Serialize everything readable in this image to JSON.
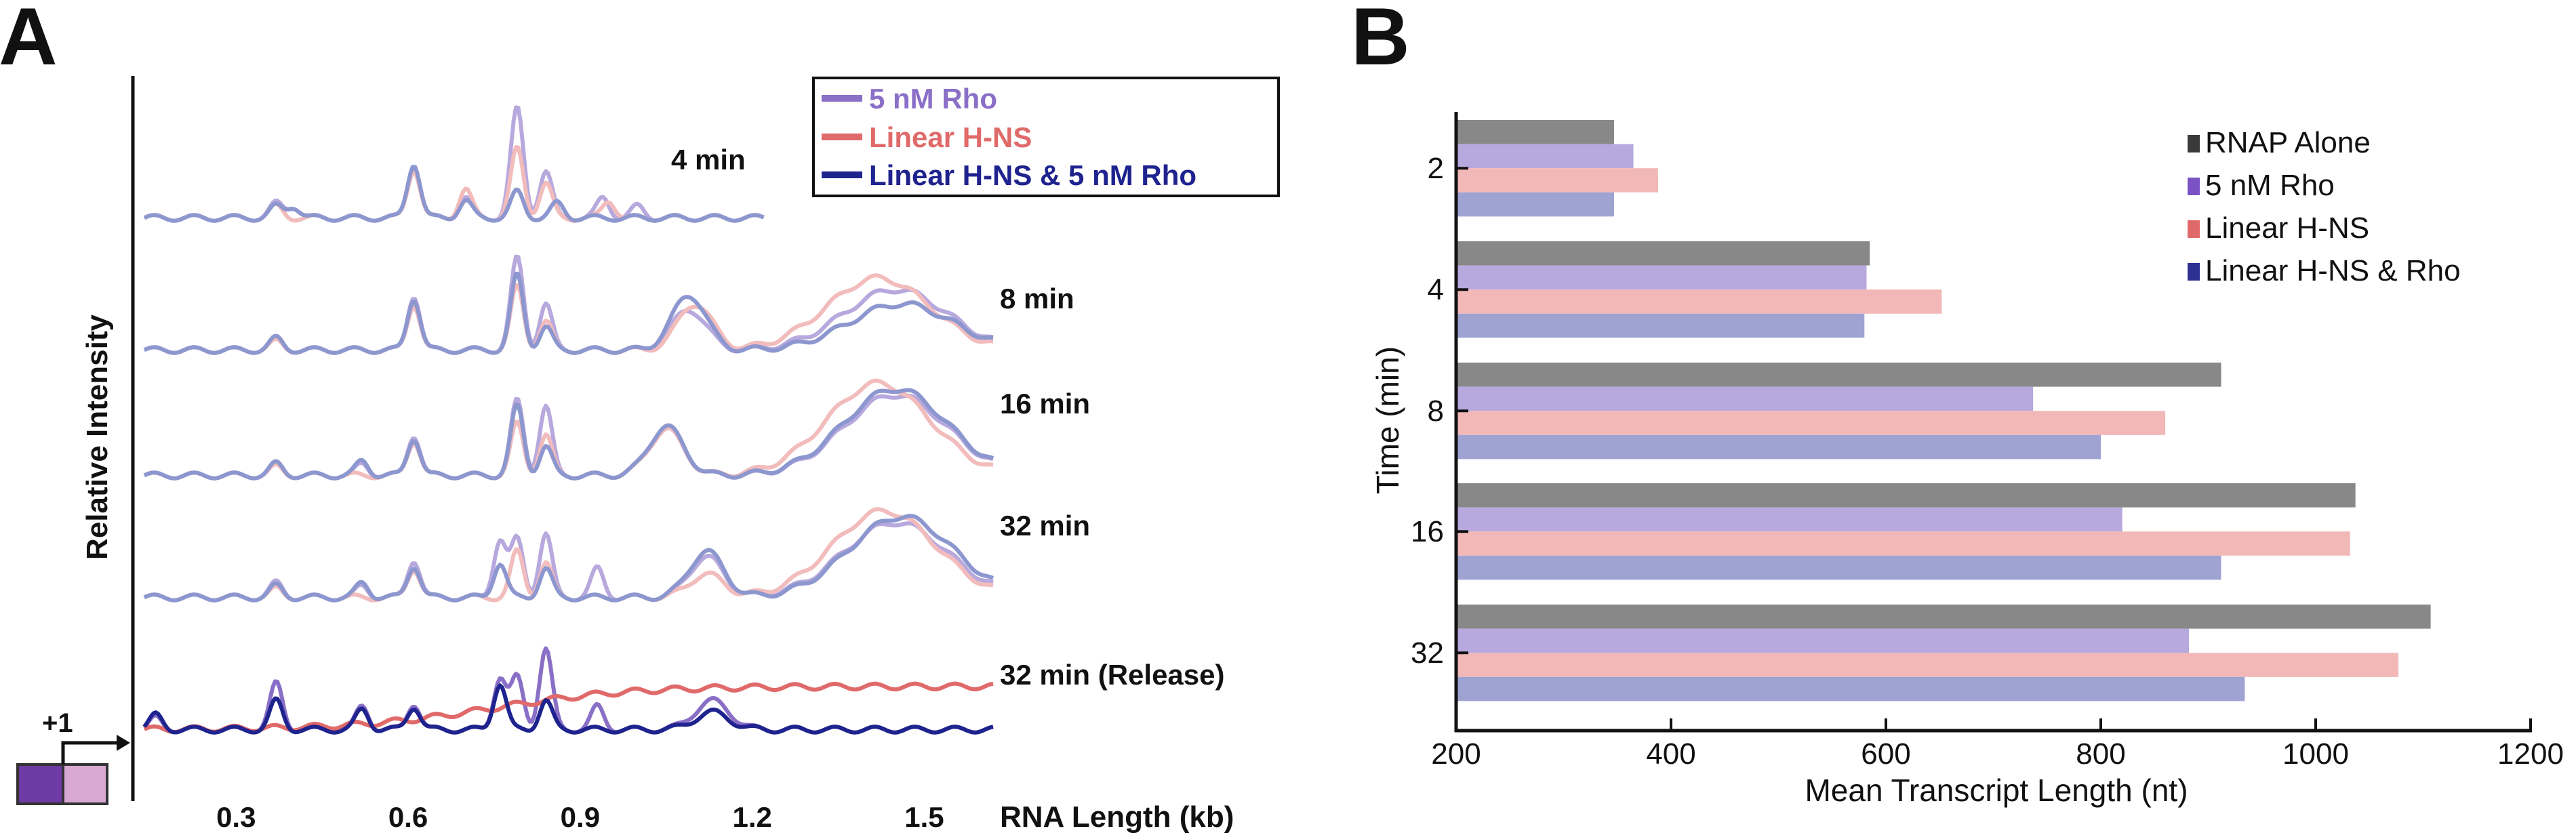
{
  "panels": {
    "a_letter": "A",
    "b_letter": "B"
  },
  "colors": {
    "rho": "#8a6fc7",
    "hns": "#e06a6a",
    "hns_rho": "#1f238e",
    "rho_light": "#b7a8dd",
    "hns_light": "#f2bcbc",
    "hns_rho_light": "#8d97cf",
    "rnap_bar": "#888888",
    "rho_bar": "#b7a8dd",
    "hns_bar": "#f2b8b8",
    "hns_rho_bar": "#9ea3d2",
    "rnap_key": "#3a3a3a",
    "rho_key": "#7b52c4",
    "hns_key": "#e06a6a",
    "hns_rho_key": "#2e3192"
  },
  "chart_data": [
    {
      "type": "line",
      "panel": "A",
      "ylabel": "Relative Intensity",
      "xlabel": "RNA Length (kb)",
      "xticks": [
        "0.3",
        "0.6",
        "0.9",
        "1.2",
        "1.5"
      ],
      "xlim": [
        0.12,
        1.62
      ],
      "promoter_label": "+1",
      "legend": {
        "placement": "top-right",
        "entries": [
          "5 nM Rho",
          "Linear H-NS",
          "Linear H-NS & 5 nM Rho"
        ]
      },
      "traces": [
        {
          "label": "4 min",
          "x_max": 1.22,
          "peaks": {
            "rho": [
              [
                0.37,
                0.25
              ],
              [
                0.4,
                0.2
              ],
              [
                0.61,
                0.9
              ],
              [
                0.7,
                0.35
              ],
              [
                0.79,
                1.9
              ],
              [
                0.84,
                0.8
              ],
              [
                0.94,
                0.35
              ],
              [
                1.0,
                0.2
              ]
            ],
            "hns": [
              [
                0.37,
                0.2
              ],
              [
                0.61,
                0.85
              ],
              [
                0.7,
                0.5
              ],
              [
                0.79,
                1.2
              ],
              [
                0.84,
                0.6
              ],
              [
                0.95,
                0.3
              ]
            ],
            "hns_rho": [
              [
                0.37,
                0.2
              ],
              [
                0.4,
                0.2
              ],
              [
                0.61,
                0.95
              ],
              [
                0.7,
                0.3
              ],
              [
                0.79,
                0.45
              ],
              [
                0.86,
                0.25
              ]
            ]
          }
        },
        {
          "label": "8 min",
          "x_max": 1.62,
          "peaks": {
            "rho": [
              [
                0.37,
                0.2
              ],
              [
                0.61,
                0.95
              ],
              [
                0.79,
                1.6
              ],
              [
                0.84,
                0.8
              ],
              [
                1.09,
                0.7
              ],
              [
                1.45,
                1.05
              ]
            ],
            "hns": [
              [
                0.37,
                0.15
              ],
              [
                0.61,
                0.8
              ],
              [
                0.79,
                1.1
              ],
              [
                0.84,
                0.5
              ],
              [
                1.1,
                0.8
              ],
              [
                1.42,
                1.25
              ]
            ],
            "hns_rho": [
              [
                0.37,
                0.2
              ],
              [
                0.61,
                0.9
              ],
              [
                0.79,
                1.3
              ],
              [
                0.84,
                0.4
              ],
              [
                1.09,
                0.95
              ],
              [
                1.46,
                0.8
              ]
            ]
          }
        },
        {
          "label": "16 min",
          "x_max": 1.62,
          "peaks": {
            "rho": [
              [
                0.37,
                0.2
              ],
              [
                0.52,
                0.2
              ],
              [
                0.61,
                0.7
              ],
              [
                0.79,
                1.3
              ],
              [
                0.84,
                1.2
              ],
              [
                1.05,
                0.8
              ],
              [
                1.45,
                1.4
              ]
            ],
            "hns": [
              [
                0.37,
                0.15
              ],
              [
                0.61,
                0.6
              ],
              [
                0.79,
                0.9
              ],
              [
                0.84,
                0.7
              ],
              [
                1.05,
                0.8
              ],
              [
                1.42,
                1.6
              ]
            ],
            "hns_rho": [
              [
                0.37,
                0.2
              ],
              [
                0.52,
                0.25
              ],
              [
                0.61,
                0.65
              ],
              [
                0.79,
                1.2
              ],
              [
                0.84,
                0.5
              ],
              [
                1.05,
                0.85
              ],
              [
                1.45,
                1.5
              ]
            ]
          }
        },
        {
          "label": "32 min",
          "x_max": 1.62,
          "peaks": {
            "rho": [
              [
                0.37,
                0.25
              ],
              [
                0.52,
                0.2
              ],
              [
                0.61,
                0.65
              ],
              [
                0.76,
                1.0
              ],
              [
                0.79,
                1.0
              ],
              [
                0.84,
                1.1
              ],
              [
                0.93,
                0.5
              ],
              [
                1.12,
                0.7
              ],
              [
                1.45,
                1.3
              ]
            ],
            "hns": [
              [
                0.37,
                0.15
              ],
              [
                0.61,
                0.5
              ],
              [
                0.79,
                0.8
              ],
              [
                0.84,
                0.6
              ],
              [
                1.12,
                0.4
              ],
              [
                1.43,
                1.5
              ]
            ],
            "hns_rho": [
              [
                0.37,
                0.2
              ],
              [
                0.52,
                0.25
              ],
              [
                0.61,
                0.55
              ],
              [
                0.76,
                0.6
              ],
              [
                0.84,
                0.5
              ],
              [
                1.12,
                0.8
              ],
              [
                1.46,
                1.4
              ]
            ]
          }
        },
        {
          "label": "32 min (Release)",
          "x_max": 1.62,
          "peaks": {
            "rho": [
              [
                0.16,
                0.2
              ],
              [
                0.37,
                0.8
              ],
              [
                0.52,
                0.4
              ],
              [
                0.61,
                0.45
              ],
              [
                0.76,
                0.9
              ],
              [
                0.79,
                0.9
              ],
              [
                0.84,
                1.4
              ],
              [
                0.93,
                0.4
              ],
              [
                1.13,
                0.5
              ]
            ],
            "hns": [],
            "hns_rho": [
              [
                0.16,
                0.25
              ],
              [
                0.37,
                0.5
              ],
              [
                0.52,
                0.35
              ],
              [
                0.61,
                0.4
              ],
              [
                0.76,
                0.8
              ],
              [
                0.84,
                0.5
              ],
              [
                1.13,
                0.3
              ]
            ]
          }
        }
      ]
    },
    {
      "type": "bar",
      "panel": "B",
      "orientation": "horizontal",
      "ylabel": "Time (min)",
      "xlabel": "Mean Transcript Length (nt)",
      "xlim": [
        200,
        1200
      ],
      "xticks": [
        "200",
        "400",
        "600",
        "800",
        "1000",
        "1200"
      ],
      "categories": [
        "2",
        "4",
        "8",
        "16",
        "32"
      ],
      "legend_placement": "top-right",
      "series": [
        {
          "name": "RNAP Alone",
          "values": [
            347,
            585,
            912,
            1037,
            1107
          ]
        },
        {
          "name": "5 nM Rho",
          "values": [
            365,
            582,
            737,
            820,
            882
          ]
        },
        {
          "name": "Linear H-NS",
          "values": [
            388,
            652,
            860,
            1032,
            1077
          ]
        },
        {
          "name": "Linear H-NS & Rho",
          "values": [
            347,
            580,
            800,
            912,
            934
          ]
        }
      ]
    }
  ]
}
